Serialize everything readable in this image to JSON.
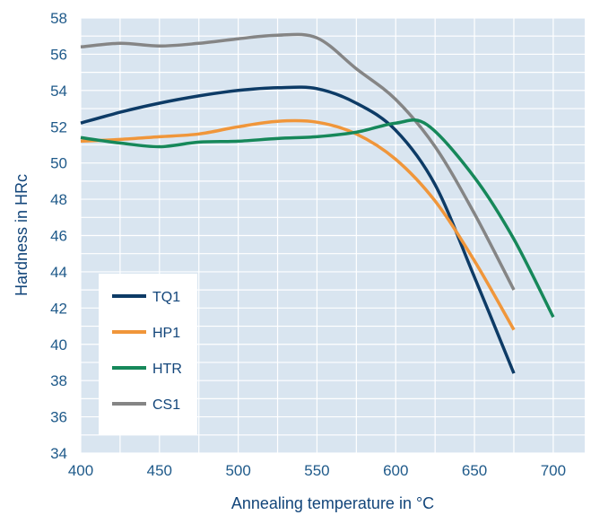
{
  "chart_data": {
    "type": "line",
    "xlabel": "Annealing temperature in °C",
    "ylabel": "Hardness in HRc",
    "xlim": [
      400,
      720
    ],
    "ylim": [
      34,
      58
    ],
    "x_ticks": [
      400,
      450,
      500,
      550,
      600,
      650,
      700
    ],
    "y_ticks": [
      34,
      36,
      38,
      40,
      42,
      44,
      46,
      48,
      50,
      52,
      54,
      56,
      58
    ],
    "grid": true,
    "legend_position": "bottom-left",
    "colors": {
      "plot_background": "#d9e5f0",
      "grid": "#ffffff",
      "tick_text": "#1f5a8a",
      "axis_title": "#12457a"
    },
    "series": [
      {
        "name": "TQ1",
        "color": "#0d3b66",
        "x": [
          400,
          425,
          450,
          475,
          500,
          525,
          550,
          575,
          600,
          625,
          650,
          675
        ],
        "y": [
          52.2,
          52.8,
          53.3,
          53.7,
          54.0,
          54.15,
          54.1,
          53.3,
          51.8,
          48.8,
          43.7,
          38.4
        ]
      },
      {
        "name": "HP1",
        "color": "#f0963a",
        "x": [
          400,
          425,
          450,
          475,
          500,
          525,
          550,
          575,
          600,
          625,
          650,
          675
        ],
        "y": [
          51.2,
          51.3,
          51.45,
          51.6,
          52.0,
          52.3,
          52.25,
          51.6,
          50.2,
          47.9,
          44.6,
          40.8
        ]
      },
      {
        "name": "HTR",
        "color": "#16885a",
        "x": [
          400,
          425,
          450,
          475,
          500,
          525,
          550,
          575,
          600,
          620,
          650,
          675,
          700
        ],
        "y": [
          51.4,
          51.1,
          50.9,
          51.15,
          51.2,
          51.35,
          51.45,
          51.7,
          52.2,
          52.1,
          49.2,
          45.8,
          41.5
        ]
      },
      {
        "name": "CS1",
        "color": "#858585",
        "x": [
          400,
          425,
          450,
          475,
          500,
          525,
          550,
          575,
          600,
          625,
          650,
          675
        ],
        "y": [
          56.4,
          56.6,
          56.45,
          56.6,
          56.85,
          57.05,
          56.9,
          55.2,
          53.5,
          50.9,
          47.2,
          43.0
        ]
      }
    ]
  }
}
